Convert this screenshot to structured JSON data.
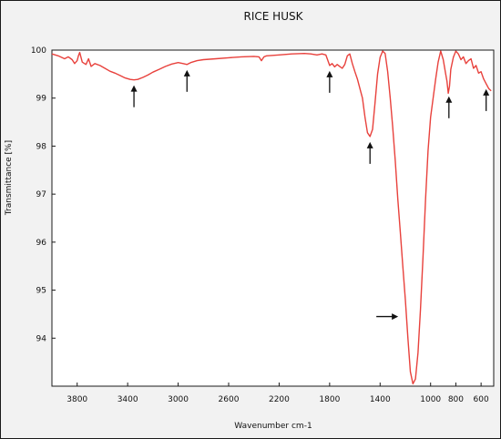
{
  "chart_data": {
    "type": "line",
    "title": "RICE HUSK",
    "xlabel": "Wavenumber cm-1",
    "ylabel": "Transmittance [%]",
    "x_reversed": true,
    "xlim": [
      4000,
      500
    ],
    "ylim": [
      93.0,
      100.0
    ],
    "x_ticks": [
      3800,
      3400,
      3000,
      2600,
      2200,
      1800,
      1400,
      1000,
      800,
      600
    ],
    "y_ticks": [
      94,
      95,
      96,
      97,
      98,
      99,
      100
    ],
    "grid": false,
    "series": [
      {
        "color": "#e8413c",
        "points": [
          [
            4000,
            99.92
          ],
          [
            3950,
            99.88
          ],
          [
            3900,
            99.82
          ],
          [
            3870,
            99.86
          ],
          [
            3840,
            99.8
          ],
          [
            3820,
            99.72
          ],
          [
            3800,
            99.78
          ],
          [
            3790,
            99.88
          ],
          [
            3780,
            99.95
          ],
          [
            3760,
            99.75
          ],
          [
            3730,
            99.7
          ],
          [
            3710,
            99.82
          ],
          [
            3690,
            99.66
          ],
          [
            3660,
            99.72
          ],
          [
            3620,
            99.68
          ],
          [
            3580,
            99.62
          ],
          [
            3540,
            99.56
          ],
          [
            3500,
            99.52
          ],
          [
            3460,
            99.47
          ],
          [
            3420,
            99.42
          ],
          [
            3380,
            99.39
          ],
          [
            3350,
            99.38
          ],
          [
            3320,
            99.39
          ],
          [
            3280,
            99.43
          ],
          [
            3240,
            99.48
          ],
          [
            3200,
            99.54
          ],
          [
            3150,
            99.6
          ],
          [
            3100,
            99.66
          ],
          [
            3050,
            99.71
          ],
          [
            3000,
            99.74
          ],
          [
            2960,
            99.72
          ],
          [
            2930,
            99.7
          ],
          [
            2900,
            99.74
          ],
          [
            2850,
            99.78
          ],
          [
            2800,
            99.8
          ],
          [
            2700,
            99.82
          ],
          [
            2600,
            99.84
          ],
          [
            2500,
            99.86
          ],
          [
            2400,
            99.87
          ],
          [
            2360,
            99.86
          ],
          [
            2340,
            99.78
          ],
          [
            2320,
            99.86
          ],
          [
            2300,
            99.88
          ],
          [
            2200,
            99.9
          ],
          [
            2100,
            99.92
          ],
          [
            2000,
            99.93
          ],
          [
            1950,
            99.92
          ],
          [
            1900,
            99.9
          ],
          [
            1860,
            99.92
          ],
          [
            1830,
            99.9
          ],
          [
            1800,
            99.68
          ],
          [
            1780,
            99.72
          ],
          [
            1760,
            99.65
          ],
          [
            1740,
            99.7
          ],
          [
            1720,
            99.66
          ],
          [
            1700,
            99.62
          ],
          [
            1680,
            99.7
          ],
          [
            1660,
            99.88
          ],
          [
            1640,
            99.92
          ],
          [
            1620,
            99.72
          ],
          [
            1600,
            99.55
          ],
          [
            1580,
            99.4
          ],
          [
            1560,
            99.2
          ],
          [
            1540,
            99.0
          ],
          [
            1520,
            98.6
          ],
          [
            1500,
            98.28
          ],
          [
            1480,
            98.2
          ],
          [
            1460,
            98.35
          ],
          [
            1440,
            98.9
          ],
          [
            1420,
            99.5
          ],
          [
            1400,
            99.85
          ],
          [
            1380,
            99.98
          ],
          [
            1360,
            99.93
          ],
          [
            1340,
            99.55
          ],
          [
            1320,
            99.0
          ],
          [
            1300,
            98.4
          ],
          [
            1280,
            97.7
          ],
          [
            1260,
            96.9
          ],
          [
            1240,
            96.2
          ],
          [
            1220,
            95.5
          ],
          [
            1200,
            94.8
          ],
          [
            1180,
            94.0
          ],
          [
            1160,
            93.3
          ],
          [
            1140,
            93.05
          ],
          [
            1120,
            93.15
          ],
          [
            1100,
            93.7
          ],
          [
            1080,
            94.6
          ],
          [
            1060,
            95.7
          ],
          [
            1040,
            96.9
          ],
          [
            1020,
            97.9
          ],
          [
            1000,
            98.6
          ],
          [
            980,
            99.0
          ],
          [
            960,
            99.4
          ],
          [
            940,
            99.75
          ],
          [
            920,
            99.98
          ],
          [
            900,
            99.8
          ],
          [
            880,
            99.5
          ],
          [
            870,
            99.35
          ],
          [
            860,
            99.1
          ],
          [
            850,
            99.25
          ],
          [
            840,
            99.6
          ],
          [
            820,
            99.85
          ],
          [
            800,
            99.98
          ],
          [
            780,
            99.92
          ],
          [
            760,
            99.8
          ],
          [
            740,
            99.86
          ],
          [
            720,
            99.72
          ],
          [
            700,
            99.78
          ],
          [
            680,
            99.82
          ],
          [
            660,
            99.62
          ],
          [
            640,
            99.68
          ],
          [
            620,
            99.52
          ],
          [
            600,
            99.55
          ],
          [
            580,
            99.4
          ],
          [
            560,
            99.3
          ],
          [
            540,
            99.2
          ],
          [
            520,
            99.15
          ]
        ]
      }
    ],
    "annotations": [
      {
        "type": "arrow-up",
        "x": 3350,
        "y": 99.38
      },
      {
        "type": "arrow-up",
        "x": 2930,
        "y": 99.7
      },
      {
        "type": "arrow-up",
        "x": 1800,
        "y": 99.68
      },
      {
        "type": "arrow-up",
        "x": 1480,
        "y": 98.2
      },
      {
        "type": "arrow-right",
        "x": 1235,
        "y": 94.45
      },
      {
        "type": "arrow-up",
        "x": 855,
        "y": 99.15
      },
      {
        "type": "arrow-up",
        "x": 560,
        "y": 99.3
      }
    ]
  }
}
